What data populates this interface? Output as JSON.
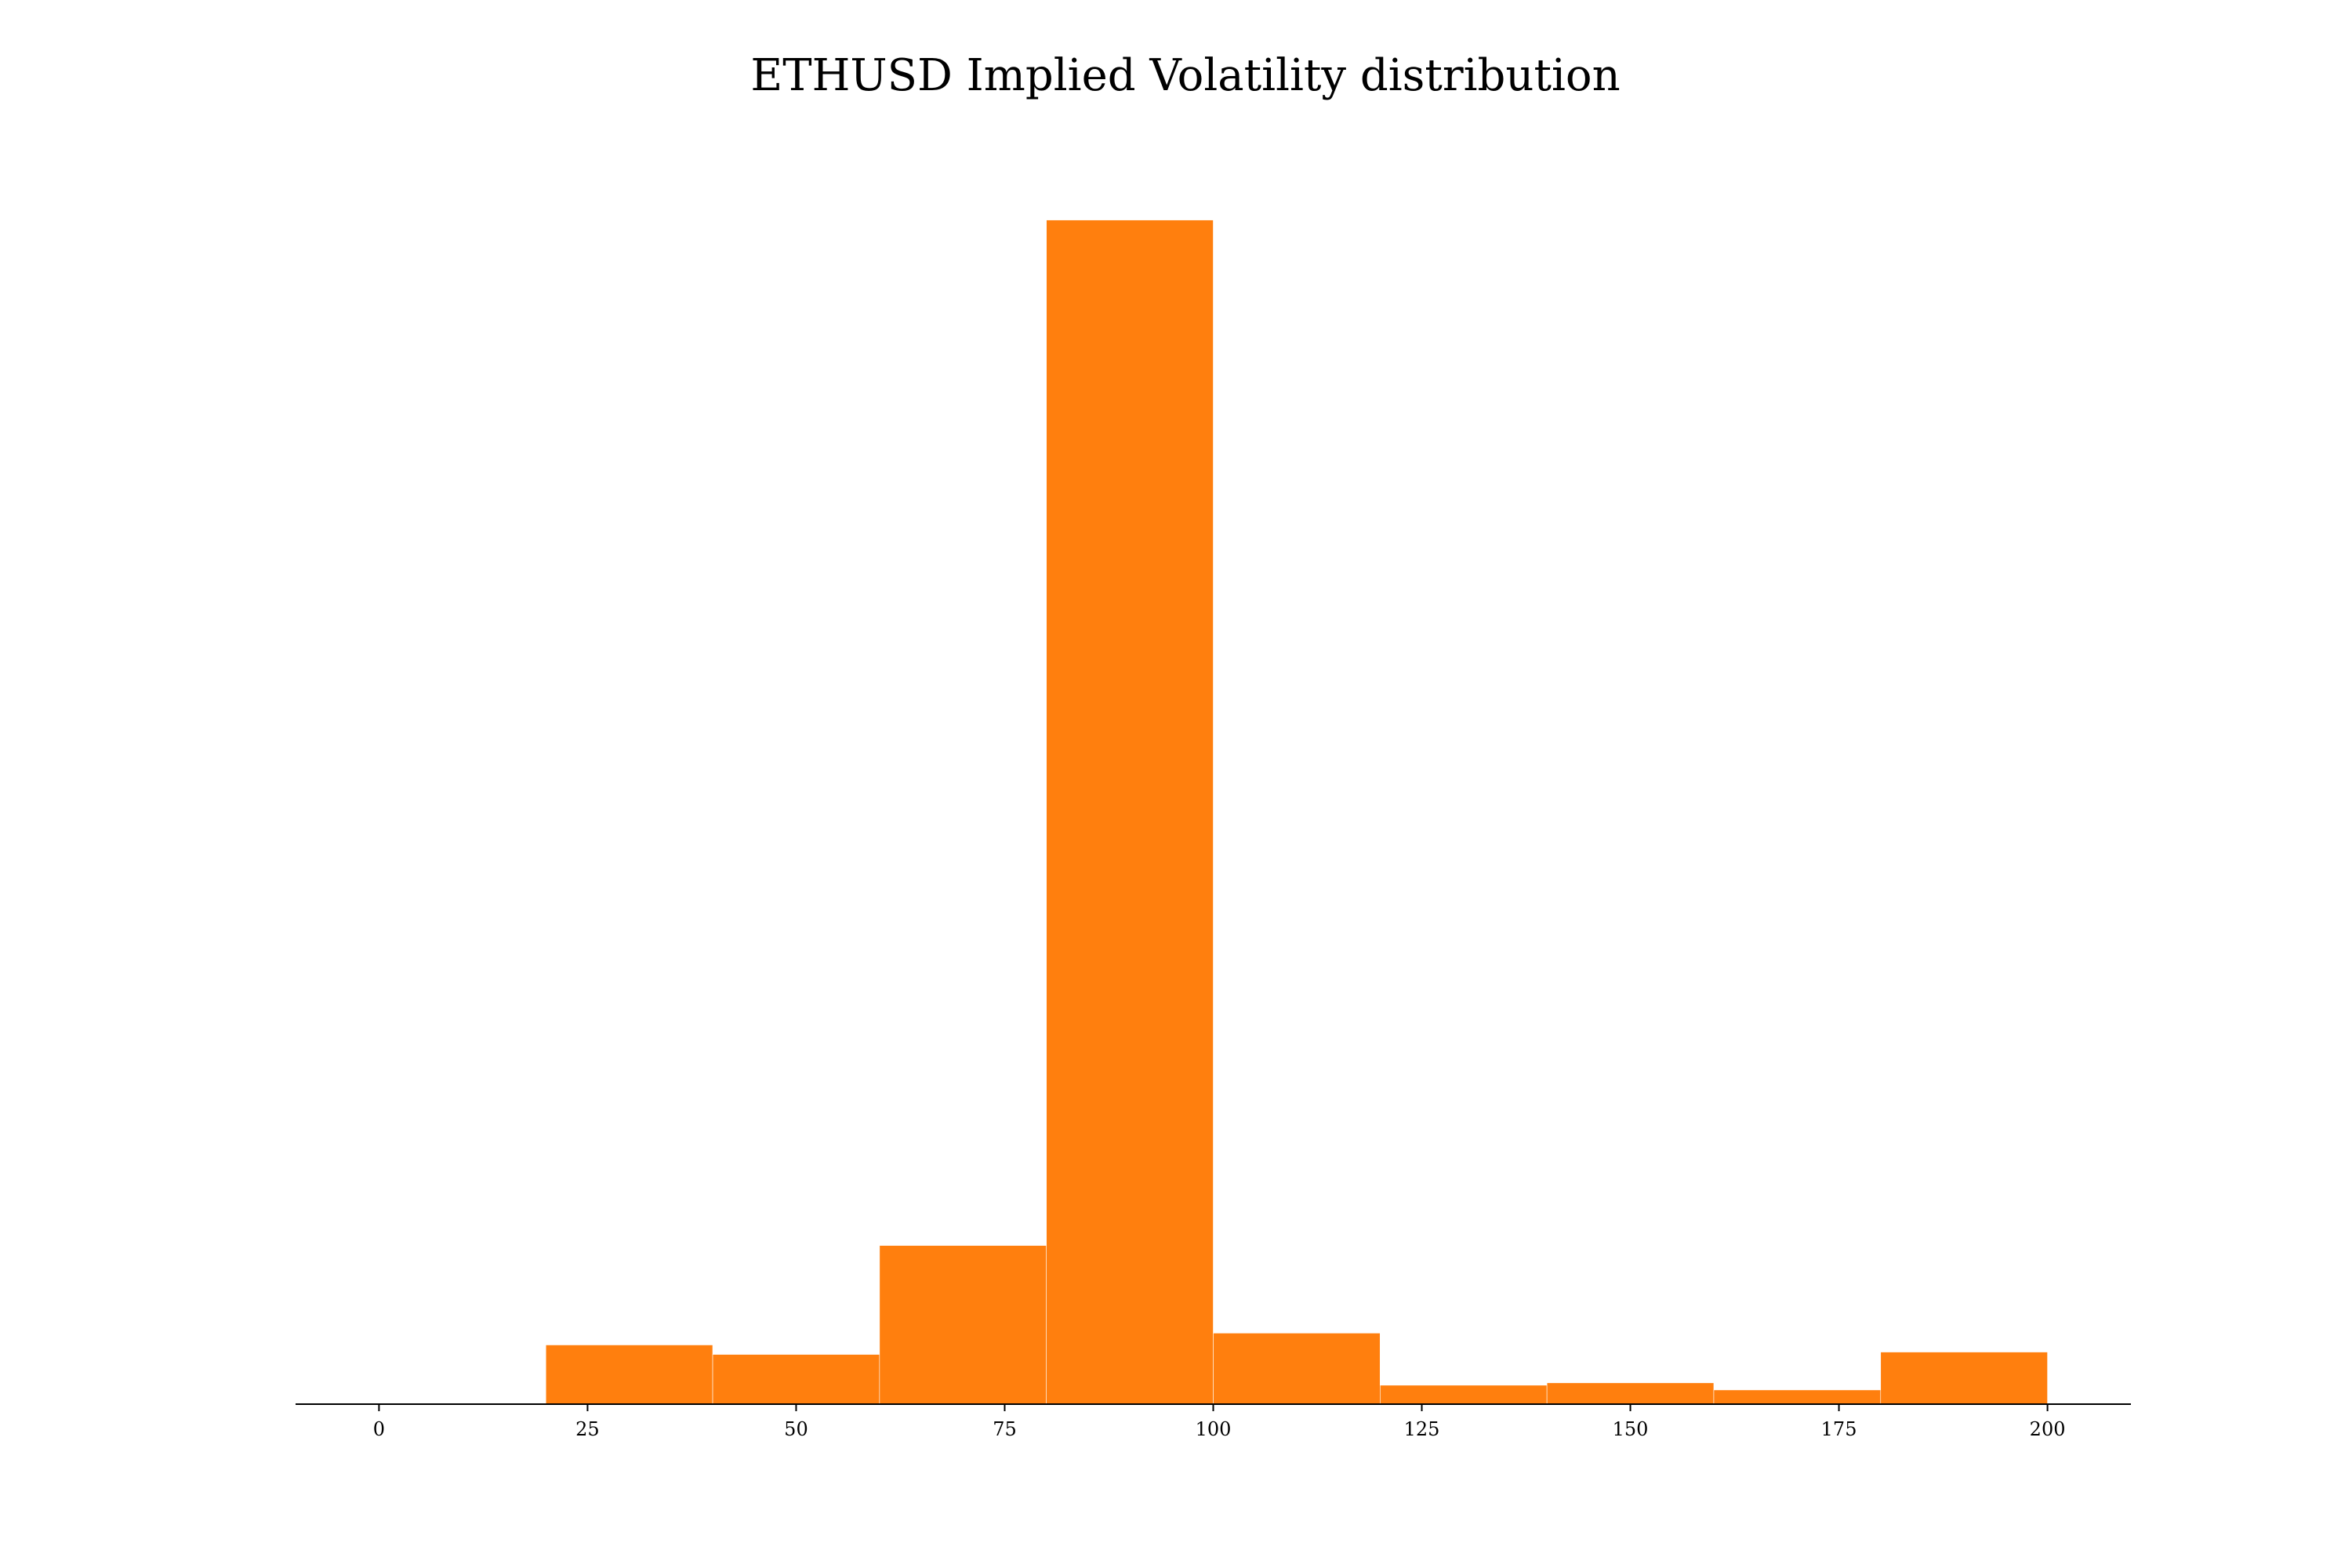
{
  "chart_data": {
    "type": "bar",
    "title": "ETHUSD Implied Volatility distribution",
    "xlabel": "",
    "ylabel": "",
    "bins": [
      {
        "start": 20,
        "end": 40,
        "count": 2.5
      },
      {
        "start": 40,
        "end": 60,
        "count": 2.1
      },
      {
        "start": 60,
        "end": 80,
        "count": 6.7
      },
      {
        "start": 80,
        "end": 100,
        "count": 50.0
      },
      {
        "start": 100,
        "end": 120,
        "count": 3.0
      },
      {
        "start": 120,
        "end": 140,
        "count": 0.8
      },
      {
        "start": 140,
        "end": 160,
        "count": 0.9
      },
      {
        "start": 160,
        "end": 180,
        "count": 0.6
      },
      {
        "start": 180,
        "end": 200,
        "count": 2.2
      }
    ],
    "x_ticks": [
      "0",
      "25",
      "50",
      "75",
      "100",
      "125",
      "150",
      "175",
      "200"
    ],
    "xlim": [
      -10,
      210
    ],
    "ylim": [
      0,
      53
    ],
    "bar_color": "#ff7f0e",
    "grid": false,
    "y_axis_visible": false
  }
}
